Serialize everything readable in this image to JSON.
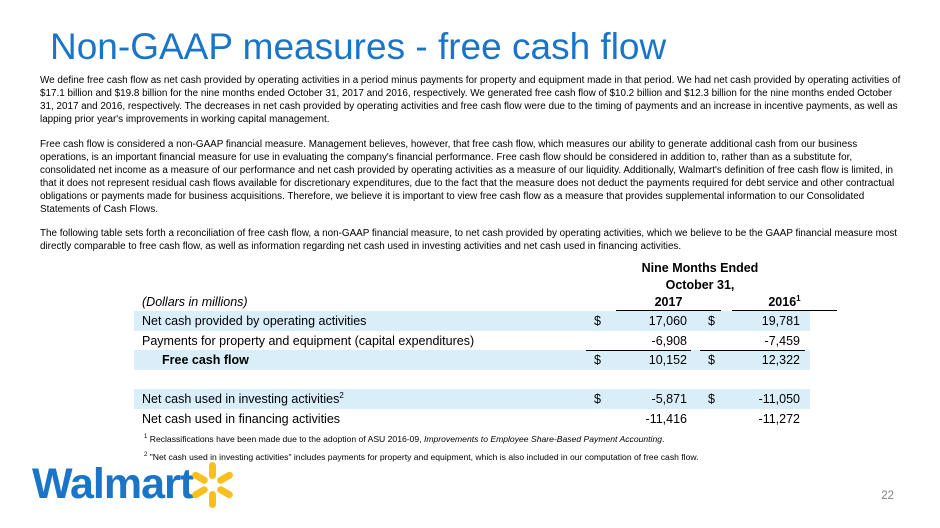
{
  "slide": {
    "title": "Non-GAAP measures - free cash flow",
    "paragraphs": [
      "We define free cash flow as net cash provided by operating activities in a period minus payments for property and equipment made in that period.  We had net cash provided by operating activities of $17.1 billion and $19.8 billion for the nine months ended October 31, 2017 and 2016, respectively.  We generated free cash flow of $10.2 billion and $12.3 billion for the nine months ended October 31, 2017 and 2016, respectively.  The decreases in net cash provided by operating activities and free cash flow were due to the timing of payments and an increase in incentive payments, as well as lapping prior year's improvements in working capital management.",
      "Free cash flow is considered a non-GAAP financial measure.  Management believes, however, that free cash flow, which measures our ability to generate additional cash from our business operations, is an important financial measure for use in evaluating the company's financial performance.  Free cash flow should be considered in addition to, rather than as a substitute for, consolidated net income as a measure of our performance and net cash provided by operating activities as a measure of our liquidity.  Additionally, Walmart's definition of free cash flow is limited, in that it does not represent residual cash flows available for discretionary expenditures, due to the fact that the measure does not deduct the payments required for debt service and other contractual obligations or payments made for business acquisitions.  Therefore, we believe it is important to view free cash flow as a measure that provides supplemental information to our Consolidated Statements of Cash Flows.",
      "The following table sets forth a reconciliation of free cash flow, a non-GAAP financial measure, to net cash provided by operating activities, which we believe to be the GAAP financial measure most directly comparable to free cash flow, as well as information regarding net cash used in investing activities and net cash used in financing activities."
    ],
    "page_number": "22",
    "logo_text": "Walmart"
  },
  "table": {
    "group_header_line1": "Nine Months Ended",
    "group_header_line2": "October 31,",
    "units_label": "(Dollars in millions)",
    "col1": "2017",
    "col2": "2016",
    "col2_sup": "1",
    "rows": [
      {
        "label": "Net cash provided by operating activities",
        "cur1": "$",
        "v1": "17,060",
        "cur2": "$",
        "v2": "19,781"
      },
      {
        "label": "Payments for property and equipment (capital expenditures)",
        "cur1": "",
        "v1": "-6,908",
        "cur2": "",
        "v2": "-7,459"
      },
      {
        "label": "Free cash flow",
        "cur1": "$",
        "v1": "10,152",
        "cur2": "$",
        "v2": "12,322"
      },
      {
        "label": "Net cash used in investing activities",
        "sup": "2",
        "cur1": "$",
        "v1": "-5,871",
        "cur2": "$",
        "v2": "-11,050"
      },
      {
        "label": "Net cash used in financing activities",
        "cur1": "",
        "v1": "-11,416",
        "cur2": "",
        "v2": "-11,272"
      }
    ]
  },
  "footnotes": [
    {
      "mark": "1",
      "text_before": " Reclassifications have been made due to the adoption of ASU 2016-09, ",
      "text_italic": "Improvements to Employee Share-Based Payment Accounting",
      "text_after": "."
    },
    {
      "mark": "2",
      "text": " \"Net cash used in investing activities\" includes payments for property and equipment, which is also included in our computation of free cash flow."
    }
  ],
  "colors": {
    "title": "#1a75c9",
    "row_shade": "#daeefa",
    "spark": "#f9bf1e"
  }
}
